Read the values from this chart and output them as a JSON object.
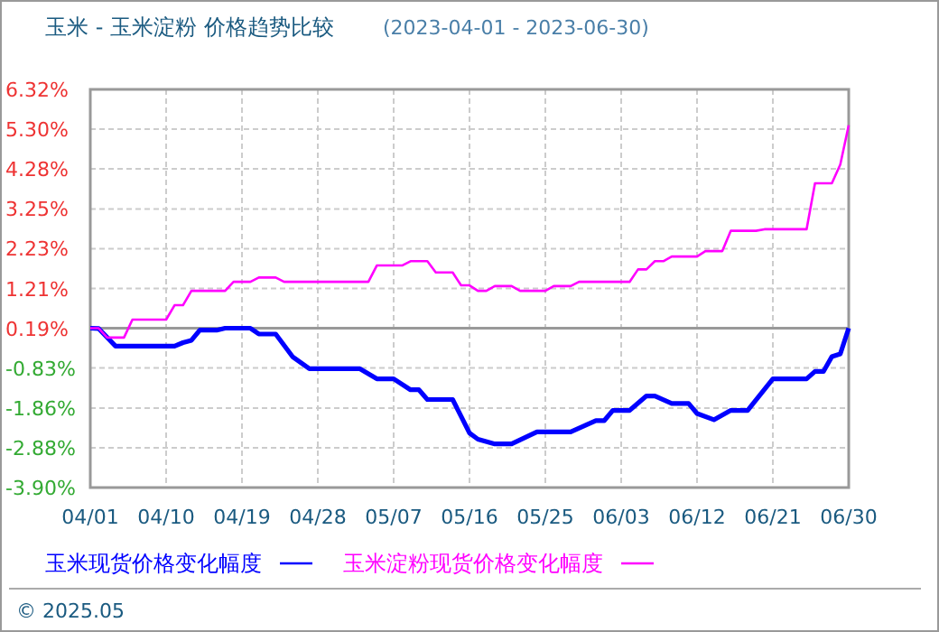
{
  "chart_data": {
    "type": "line",
    "title": "玉米 - 玉米淀粉 价格趋势比较",
    "subtitle": "(2023-04-01 - 2023-06-30)",
    "annotations": [
      "© 2025.05"
    ],
    "xlim": [
      "2023-04-01",
      "2023-06-30"
    ],
    "xticks": [
      {
        "value": "2023-04-01",
        "label": "04/01"
      },
      {
        "value": "2023-04-10",
        "label": "04/10"
      },
      {
        "value": "2023-04-19",
        "label": "04/19"
      },
      {
        "value": "2023-04-28",
        "label": "04/28"
      },
      {
        "value": "2023-05-07",
        "label": "05/07"
      },
      {
        "value": "2023-05-16",
        "label": "05/16"
      },
      {
        "value": "2023-05-25",
        "label": "05/25"
      },
      {
        "value": "2023-06-03",
        "label": "06/03"
      },
      {
        "value": "2023-06-12",
        "label": "06/12"
      },
      {
        "value": "2023-06-21",
        "label": "06/21"
      },
      {
        "value": "2023-06-30",
        "label": "06/30"
      }
    ],
    "ylim": [
      -3.9,
      6.32
    ],
    "yticks": [
      {
        "value": 6.32,
        "label": "6.32%"
      },
      {
        "value": 5.3,
        "label": "5.30%"
      },
      {
        "value": 4.28,
        "label": "4.28%"
      },
      {
        "value": 3.25,
        "label": "3.25%"
      },
      {
        "value": 2.23,
        "label": "2.23%"
      },
      {
        "value": 1.21,
        "label": "1.21%"
      },
      {
        "value": 0.19,
        "label": "0.19%"
      },
      {
        "value": -0.83,
        "label": "-0.83%"
      },
      {
        "value": -1.86,
        "label": "-1.86%"
      },
      {
        "value": -2.88,
        "label": "-2.88%"
      },
      {
        "value": -3.9,
        "label": "-3.90%"
      }
    ],
    "grid": true,
    "legend": "bottom",
    "marker": "none",
    "line_style": "solid",
    "ref_lines": [
      {
        "axis": "y",
        "value": 0.19,
        "color": "#999999"
      }
    ],
    "series": [
      {
        "name": "玉米现货价格变化幅度",
        "color": "#0000ff",
        "x": [
          "2023-04-01",
          "2023-04-02",
          "2023-04-04",
          "2023-04-11",
          "2023-04-12",
          "2023-04-13",
          "2023-04-14",
          "2023-04-16",
          "2023-04-17",
          "2023-04-20",
          "2023-04-21",
          "2023-04-23",
          "2023-04-25",
          "2023-04-27",
          "2023-05-03",
          "2023-05-05",
          "2023-05-07",
          "2023-05-09",
          "2023-05-10",
          "2023-05-11",
          "2023-05-14",
          "2023-05-16",
          "2023-05-17",
          "2023-05-19",
          "2023-05-21",
          "2023-05-24",
          "2023-05-28",
          "2023-05-31",
          "2023-06-01",
          "2023-06-02",
          "2023-06-04",
          "2023-06-06",
          "2023-06-07",
          "2023-06-09",
          "2023-06-11",
          "2023-06-12",
          "2023-06-14",
          "2023-06-16",
          "2023-06-18",
          "2023-06-21",
          "2023-06-25",
          "2023-06-26",
          "2023-06-27",
          "2023-06-28",
          "2023-06-29",
          "2023-06-30"
        ],
        "values": [
          0.19,
          0.18,
          -0.27,
          -0.27,
          -0.18,
          -0.12,
          0.14,
          0.14,
          0.19,
          0.19,
          0.04,
          0.04,
          -0.54,
          -0.85,
          -0.85,
          -1.11,
          -1.11,
          -1.39,
          -1.39,
          -1.64,
          -1.64,
          -2.5,
          -2.66,
          -2.78,
          -2.78,
          -2.47,
          -2.47,
          -2.18,
          -2.18,
          -1.92,
          -1.92,
          -1.55,
          -1.55,
          -1.74,
          -1.74,
          -2.0,
          -2.16,
          -1.92,
          -1.92,
          -1.11,
          -1.11,
          -0.92,
          -0.92,
          -0.54,
          -0.47,
          0.19
        ]
      },
      {
        "name": "玉米淀粉现货价格变化幅度",
        "color": "#ff00ff",
        "x": [
          "2023-04-01",
          "2023-04-02",
          "2023-04-03",
          "2023-04-05",
          "2023-04-06",
          "2023-04-10",
          "2023-04-11",
          "2023-04-12",
          "2023-04-13",
          "2023-04-17",
          "2023-04-18",
          "2023-04-20",
          "2023-04-21",
          "2023-04-23",
          "2023-04-24",
          "2023-05-04",
          "2023-05-05",
          "2023-05-08",
          "2023-05-09",
          "2023-05-11",
          "2023-05-12",
          "2023-05-14",
          "2023-05-15",
          "2023-05-16",
          "2023-05-17",
          "2023-05-18",
          "2023-05-19",
          "2023-05-21",
          "2023-05-22",
          "2023-05-25",
          "2023-05-26",
          "2023-05-28",
          "2023-05-29",
          "2023-06-04",
          "2023-06-05",
          "2023-06-06",
          "2023-06-07",
          "2023-06-08",
          "2023-06-09",
          "2023-06-12",
          "2023-06-13",
          "2023-06-15",
          "2023-06-16",
          "2023-06-19",
          "2023-06-20",
          "2023-06-25",
          "2023-06-26",
          "2023-06-28",
          "2023-06-29",
          "2023-06-30"
        ],
        "values": [
          0.19,
          0.19,
          -0.05,
          -0.05,
          0.41,
          0.41,
          0.78,
          0.78,
          1.15,
          1.15,
          1.38,
          1.38,
          1.49,
          1.49,
          1.38,
          1.38,
          1.8,
          1.8,
          1.91,
          1.91,
          1.62,
          1.62,
          1.29,
          1.29,
          1.15,
          1.15,
          1.27,
          1.27,
          1.15,
          1.15,
          1.27,
          1.27,
          1.38,
          1.38,
          1.7,
          1.7,
          1.91,
          1.91,
          2.03,
          2.03,
          2.17,
          2.17,
          2.69,
          2.69,
          2.73,
          2.73,
          3.91,
          3.91,
          4.39,
          5.4
        ]
      }
    ]
  }
}
